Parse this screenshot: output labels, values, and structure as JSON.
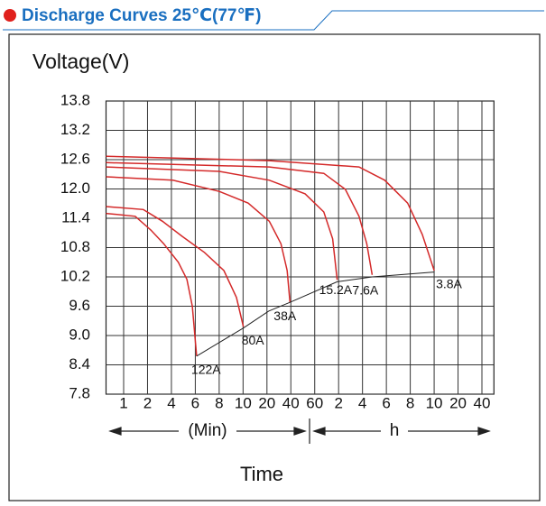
{
  "chart_data": {
    "type": "line",
    "title": "Discharge Curves 25℃(77℉)",
    "y_label": "Voltage(V)",
    "x_label": "Time",
    "x_group_labels": [
      "(Min)",
      "h"
    ],
    "xscale": "log",
    "xlim": [
      0.6,
      3400
    ],
    "xticks": [
      1,
      2,
      4,
      6,
      8,
      10,
      20,
      40,
      60,
      {
        "value": 120,
        "label": "2"
      },
      {
        "value": 240,
        "label": "4"
      },
      {
        "value": 360,
        "label": "6"
      },
      {
        "value": 480,
        "label": "8"
      },
      {
        "value": 600,
        "label": "10"
      },
      {
        "value": 1200,
        "label": "20"
      },
      {
        "value": 2400,
        "label": "40"
      }
    ],
    "ylim": [
      7.8,
      13.8
    ],
    "yticks": [
      7.8,
      8.4,
      {
        "value": 9,
        "label": "9.0"
      },
      9.6,
      10.2,
      10.8,
      11.4,
      {
        "value": 12,
        "label": "12.0"
      },
      12.6,
      13.2,
      13.8
    ],
    "grid": true,
    "series": [
      {
        "name": "122A",
        "color": "#d42a2a",
        "x": [
          0.6,
          1.4,
          2.2,
          3.2,
          4.5,
          5.2,
          5.7,
          6.1
        ],
        "values": [
          11.5,
          11.44,
          11.16,
          10.88,
          10.5,
          10.15,
          9.6,
          8.58
        ]
      },
      {
        "name": "80A",
        "color": "#d42a2a",
        "x": [
          0.6,
          1.77,
          3.08,
          4.8,
          6.7,
          8.36,
          9.4,
          10.1
        ],
        "values": [
          11.64,
          11.58,
          11.34,
          11.03,
          10.7,
          10.33,
          9.78,
          9.18
        ]
      },
      {
        "name": "38A",
        "color": "#d42a2a",
        "x": [
          0.6,
          4.1,
          8,
          11.6,
          21.4,
          30,
          36,
          39
        ],
        "values": [
          12.25,
          12.18,
          11.95,
          11.71,
          11.34,
          10.88,
          10.33,
          9.68
        ]
      },
      {
        "name": "15.2A",
        "color": "#d42a2a",
        "x": [
          0.6,
          8,
          21.4,
          51,
          78,
          101,
          115
        ],
        "values": [
          12.45,
          12.36,
          12.18,
          11.9,
          11.53,
          10.98,
          10.14
        ]
      },
      {
        "name": "7.6A",
        "color": "#d42a2a",
        "x": [
          0.6,
          21.4,
          78,
          146,
          217,
          258,
          283
        ],
        "values": [
          12.54,
          12.45,
          12.32,
          11.99,
          11.44,
          10.88,
          10.24
        ]
      },
      {
        "name": "3.8A",
        "color": "#d42a2a",
        "x": [
          0.6,
          21.4,
          217,
          350,
          465,
          537,
          600
        ],
        "values": [
          12.67,
          12.58,
          12.45,
          12.18,
          11.71,
          11.07,
          10.33
        ]
      },
      {
        "color": "#222222",
        "x": [
          6.1,
          10,
          21,
          39,
          115,
          283,
          600
        ],
        "values": [
          8.58,
          9.15,
          9.5,
          9.68,
          10.1,
          10.2,
          10.3
        ]
      }
    ]
  }
}
